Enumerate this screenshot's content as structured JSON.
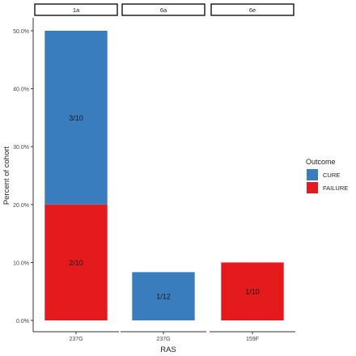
{
  "chart_data": {
    "type": "bar",
    "stacked": true,
    "facet_by": "Genotype",
    "facets": [
      {
        "label": "1a",
        "category": "237G",
        "segments": [
          {
            "outcome": "FAILURE",
            "value": 20.0,
            "label": "2/10"
          },
          {
            "outcome": "CURE",
            "value": 30.0,
            "label": "3/10"
          }
        ]
      },
      {
        "label": "6a",
        "category": "237G",
        "segments": [
          {
            "outcome": "CURE",
            "value": 8.33,
            "label": "1/12"
          }
        ]
      },
      {
        "label": "6e",
        "category": "159F",
        "segments": [
          {
            "outcome": "FAILURE",
            "value": 10.0,
            "label": "1/10"
          }
        ]
      }
    ],
    "xlabel": "RAS",
    "ylabel": "Percent of cohort",
    "ylim": [
      0,
      50
    ],
    "yticks": [
      0,
      10,
      20,
      30,
      40,
      50
    ],
    "ytick_labels": [
      "0.0%",
      "10.0%",
      "20.0%",
      "30.0%",
      "40.0%",
      "50.0%"
    ],
    "legend": {
      "title": "Outcome",
      "placement": "right",
      "entries": [
        {
          "name": "CURE",
          "color": "#3a7dbf"
        },
        {
          "name": "FAILURE",
          "color": "#e41a1c"
        }
      ]
    },
    "grid": false,
    "colors": {
      "CURE": "#3a7dbf",
      "FAILURE": "#e41a1c"
    }
  }
}
